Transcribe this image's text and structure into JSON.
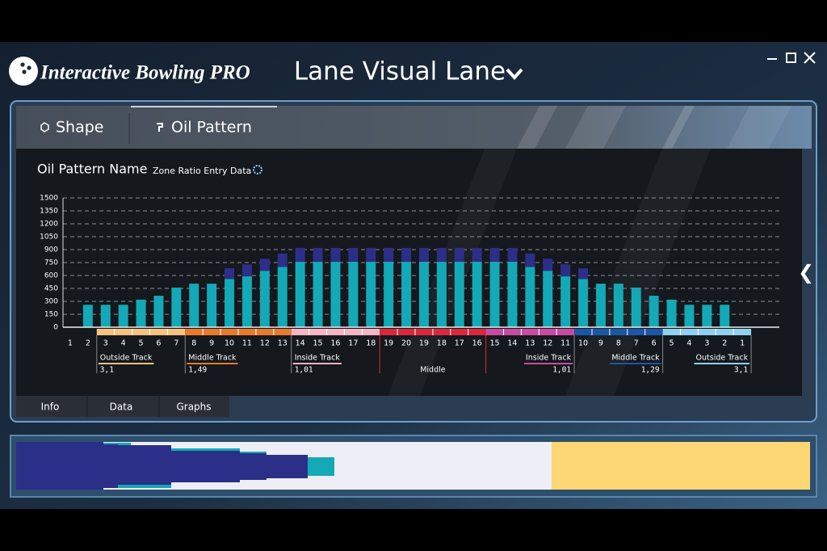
{
  "app": {
    "brand": "Interactive Bowling PRO",
    "title": "Lane Visual Lane",
    "tabs": [
      "Shape",
      "Oil Pattern"
    ],
    "bottom_tabs": [
      "Info",
      "Data",
      "Graphs"
    ]
  },
  "chart_data": {
    "type": "bar",
    "stacked": true,
    "title": "Oil Pattern Name",
    "subtitle": "Zone Ratio Entry Data",
    "categories": [
      "1",
      "2",
      "3",
      "4",
      "5",
      "6",
      "7",
      "8",
      "9",
      "10",
      "11",
      "12",
      "13",
      "14",
      "15",
      "16",
      "17",
      "18",
      "19",
      "20",
      "19",
      "18",
      "17",
      "16",
      "15",
      "14",
      "13",
      "12",
      "11",
      "10",
      "9",
      "8",
      "7",
      "6",
      "5",
      "4",
      "3",
      "2",
      "1"
    ],
    "series": [
      {
        "color": "#13a9b6",
        "values": [
          null,
          260,
          260,
          260,
          320,
          365,
          460,
          505,
          505,
          560,
          590,
          655,
          700,
          760,
          760,
          760,
          760,
          760,
          760,
          760,
          760,
          760,
          760,
          760,
          760,
          760,
          700,
          655,
          590,
          560,
          505,
          505,
          460,
          365,
          320,
          260,
          260,
          260,
          null
        ]
      },
      {
        "color": "#2c2f88",
        "values": [
          null,
          0,
          0,
          0,
          0,
          0,
          0,
          0,
          0,
          125,
          140,
          140,
          155,
          160,
          160,
          160,
          160,
          160,
          160,
          160,
          160,
          160,
          160,
          160,
          160,
          160,
          155,
          140,
          140,
          125,
          0,
          0,
          0,
          0,
          0,
          0,
          0,
          0,
          null
        ]
      }
    ],
    "ylim": [
      0,
      1500
    ],
    "yticks": [
      0,
      150,
      300,
      450,
      600,
      750,
      900,
      1050,
      1200,
      1350,
      1500
    ],
    "grid": true,
    "zones": [
      {
        "label": "Outside Track",
        "ratio": "3,1",
        "color": "#f7c27f"
      },
      {
        "label": "Middle Track",
        "ratio": "1,49",
        "color": "#e97a2c"
      },
      {
        "label": "Inside Track",
        "ratio": "1,01",
        "color": "#f4b4c2"
      },
      {
        "label": "Middle",
        "color": "#d9283b"
      },
      {
        "label": "Inside Track",
        "ratio": "1,01",
        "color": "#c84b9f"
      },
      {
        "label": "Middle Track",
        "ratio": "1,29",
        "color": "#1c57a6"
      },
      {
        "label": "Outside Track",
        "ratio": "3,1",
        "color": "#8fd1f0"
      }
    ]
  }
}
